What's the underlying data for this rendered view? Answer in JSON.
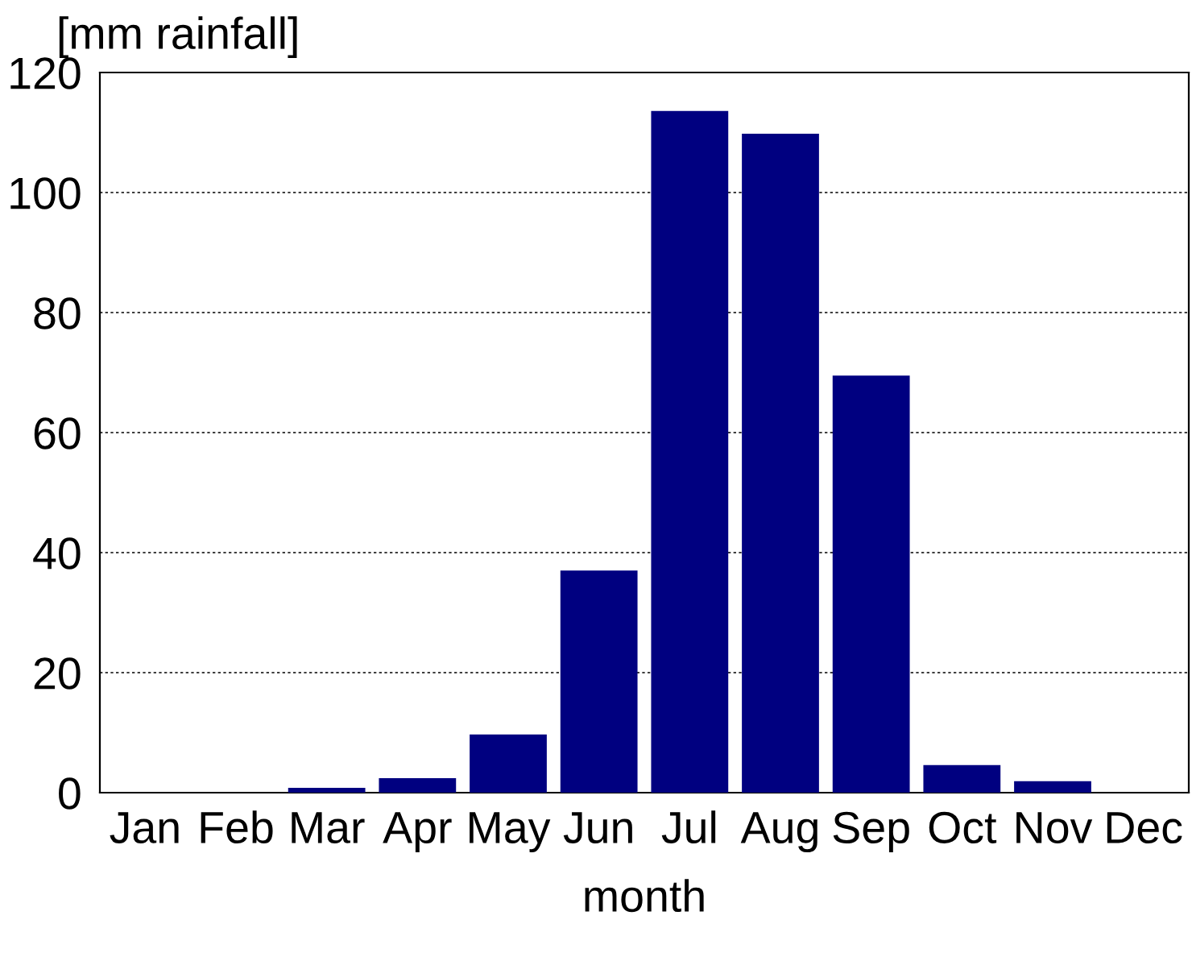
{
  "chart_data": {
    "type": "bar",
    "xlabel": "month",
    "ylabel": "[mm rainfall]",
    "categories": [
      "Jan",
      "Feb",
      "Mar",
      "Apr",
      "May",
      "Jun",
      "Jul",
      "Aug",
      "Sep",
      "Oct",
      "Nov",
      "Dec"
    ],
    "values": [
      0,
      0,
      0.8,
      2.4,
      9.7,
      37,
      113.6,
      109.8,
      69.5,
      4.6,
      1.9,
      0
    ],
    "color": "#000080",
    "ylim": [
      0,
      120
    ],
    "yticks": [
      0,
      20,
      40,
      60,
      80,
      100,
      120
    ],
    "grid": "y"
  }
}
